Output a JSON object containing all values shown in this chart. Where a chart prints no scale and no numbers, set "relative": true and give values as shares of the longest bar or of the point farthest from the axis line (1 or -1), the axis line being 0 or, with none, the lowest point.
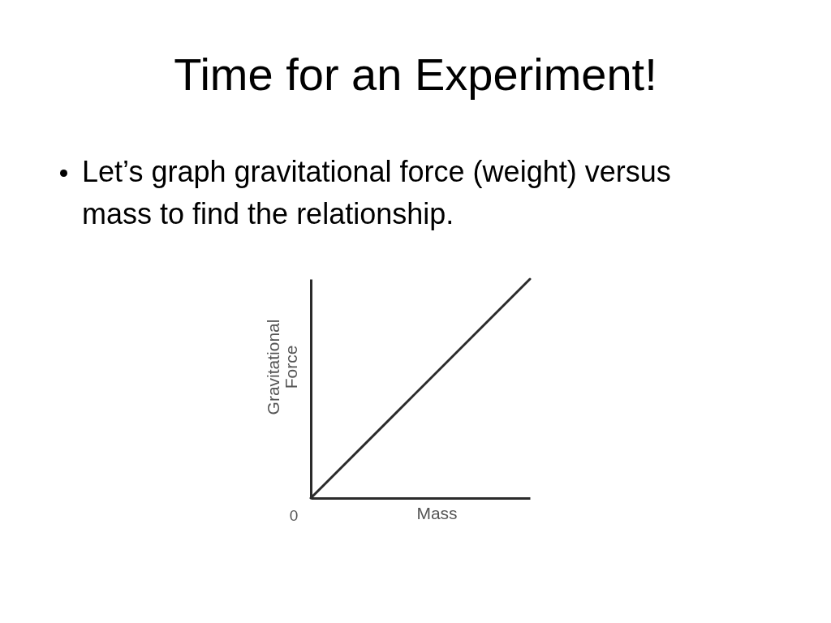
{
  "chart_data": {
    "type": "line",
    "title": "Time for an Experiment!",
    "subtitle": "Let’s graph gravitational force (weight) versus mass to find the relationship.",
    "xlabel": "Mass",
    "ylabel": "Gravitational Force",
    "categories": [
      null,
      null
    ],
    "series": [
      {
        "color": "#2b2b2b",
        "values": [
          0,
          1
        ]
      }
    ],
    "relative": true,
    "annotations": [
      "0"
    ]
  }
}
